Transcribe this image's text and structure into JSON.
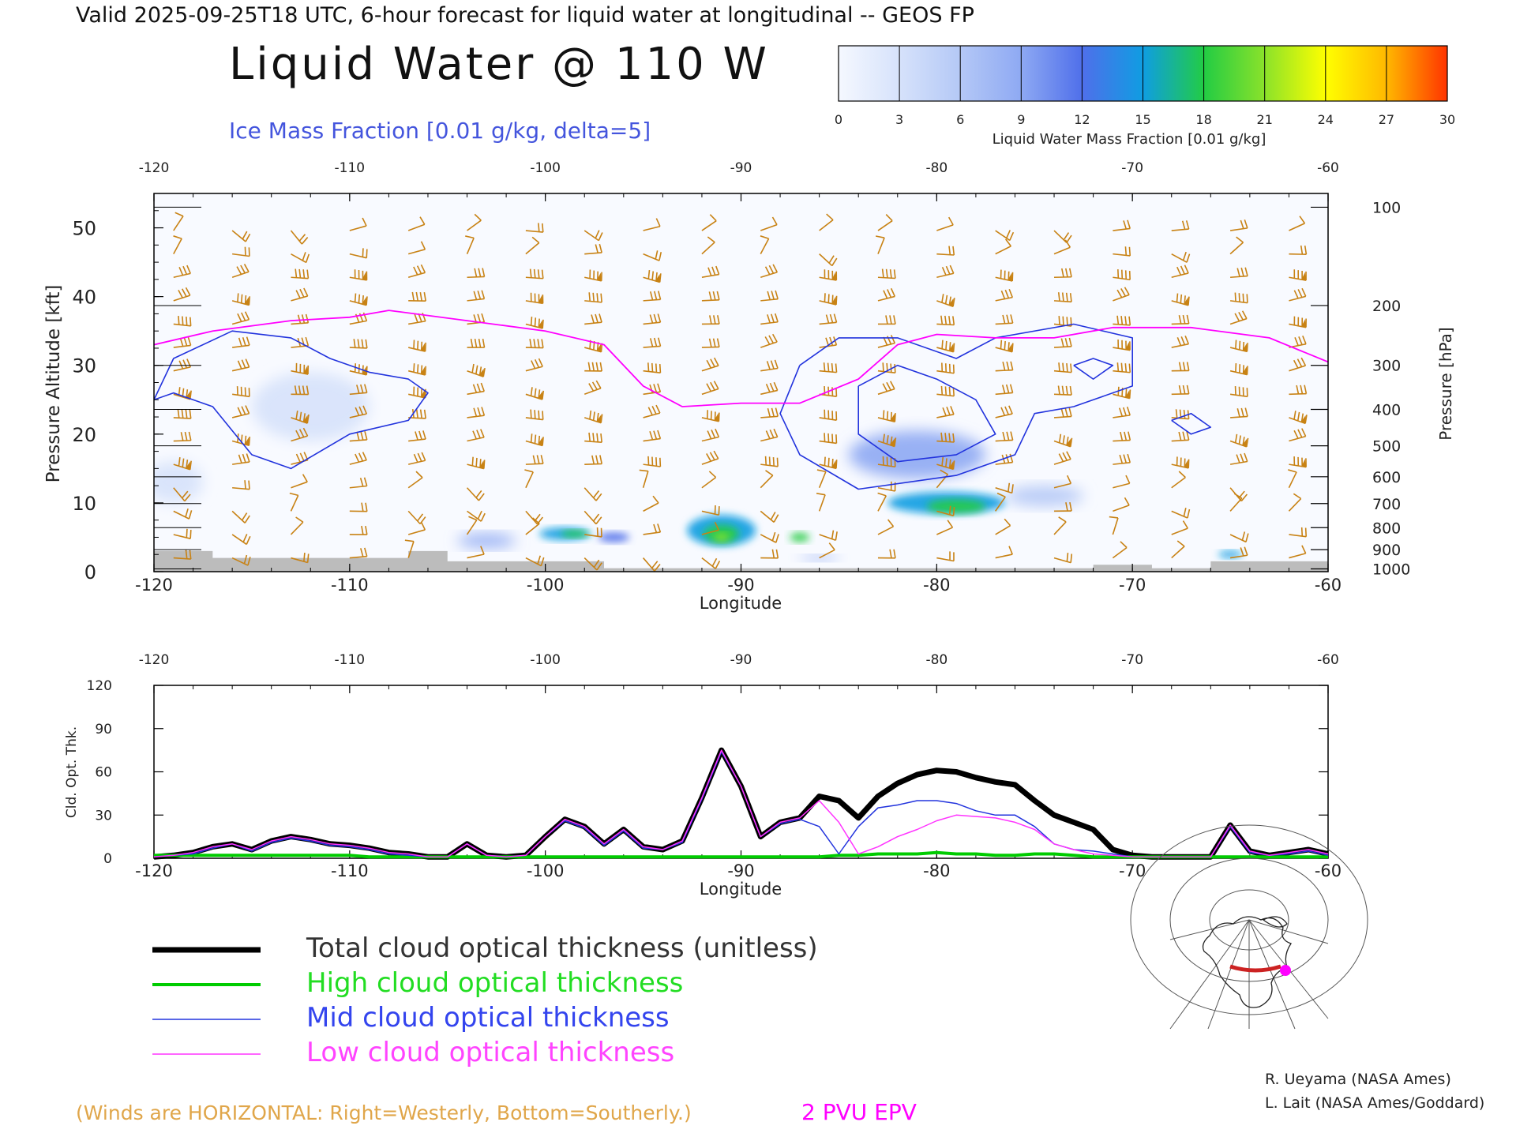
{
  "header": {
    "valid_line": "Valid 2025-09-25T18 UTC, 6-hour forecast for liquid water at longitudinal -- GEOS FP",
    "title": "Liquid Water @ 110 W",
    "contour_label": "Ice Mass Fraction [0.01 g/kg, delta=5]"
  },
  "colorbar": {
    "ticks": [
      "0",
      "3",
      "6",
      "9",
      "12",
      "15",
      "18",
      "21",
      "24",
      "27",
      "30"
    ],
    "label": "Liquid Water Mass Fraction [0.01 g/kg]",
    "colors": [
      "#f5f8ff",
      "#d6e2fb",
      "#b4c8f6",
      "#8ea9f3",
      "#4f6fea",
      "#0f9de2",
      "#22cc44",
      "#8be22a",
      "#ffff00",
      "#ffb800",
      "#ff3300"
    ]
  },
  "chart_data": [
    {
      "type": "heatmap",
      "name_hint": "cross-section",
      "xlabel": "Longitude",
      "ylabel": "Pressure Altitude [kft]",
      "ylabel_right": "Pressure [hPa]",
      "xlim": [
        -120,
        -60
      ],
      "ylim": [
        0,
        55
      ],
      "x_ticks": [
        "-120",
        "-110",
        "-100",
        "-90",
        "-80",
        "-70",
        "-60"
      ],
      "y_ticks": [
        "0",
        "10",
        "20",
        "30",
        "40",
        "50"
      ],
      "pressure_ticks": [
        "100",
        "200",
        "300",
        "400",
        "500",
        "600",
        "700",
        "800",
        "900",
        "1000"
      ],
      "pressure_ticks_kft": [
        53,
        38.7,
        30,
        23.6,
        18.3,
        13.8,
        9.9,
        6.4,
        3.2,
        0.4
      ],
      "wind_color": "#c88214",
      "pv_color": "#ff00ff",
      "ice_color": "#2233dd",
      "pv_line_2pvu": [
        [
          -120,
          33
        ],
        [
          -117,
          35
        ],
        [
          -113,
          36.5
        ],
        [
          -110,
          37
        ],
        [
          -108,
          38
        ],
        [
          -104,
          36.5
        ],
        [
          -100,
          35
        ],
        [
          -97,
          33
        ],
        [
          -95,
          27
        ],
        [
          -93,
          24
        ],
        [
          -90,
          24.5
        ],
        [
          -87,
          24.5
        ],
        [
          -84,
          28
        ],
        [
          -82,
          33
        ],
        [
          -80,
          34.5
        ],
        [
          -77,
          34
        ],
        [
          -74,
          34
        ],
        [
          -71,
          35.5
        ],
        [
          -67,
          35.5
        ],
        [
          -63,
          34
        ],
        [
          -60,
          30.5
        ]
      ],
      "ice_contours": [
        [
          [
            -120,
            25
          ],
          [
            -119,
            31
          ],
          [
            -116,
            35
          ],
          [
            -113,
            34
          ],
          [
            -111,
            31
          ],
          [
            -109,
            29
          ],
          [
            -107,
            28
          ],
          [
            -106,
            26
          ],
          [
            -107,
            22
          ],
          [
            -110,
            20
          ],
          [
            -113,
            15
          ],
          [
            -115,
            17
          ],
          [
            -117,
            24
          ],
          [
            -119,
            26
          ],
          [
            -120,
            25
          ]
        ],
        [
          [
            -87,
            30
          ],
          [
            -85,
            34
          ],
          [
            -82,
            34
          ],
          [
            -79,
            31
          ],
          [
            -77,
            34
          ],
          [
            -73,
            36
          ],
          [
            -70,
            34
          ],
          [
            -70,
            27
          ],
          [
            -73,
            24
          ],
          [
            -75,
            23
          ],
          [
            -76,
            17
          ],
          [
            -79,
            14
          ],
          [
            -84,
            12
          ],
          [
            -87,
            17
          ],
          [
            -88,
            23
          ],
          [
            -87,
            30
          ]
        ],
        [
          [
            -84,
            27
          ],
          [
            -82,
            30
          ],
          [
            -80,
            28
          ],
          [
            -78,
            25
          ],
          [
            -77,
            20
          ],
          [
            -79,
            17
          ],
          [
            -82,
            16
          ],
          [
            -84,
            20
          ],
          [
            -84,
            27
          ]
        ],
        [
          [
            -73,
            30
          ],
          [
            -72,
            31
          ],
          [
            -71,
            30
          ],
          [
            -72,
            28
          ],
          [
            -73,
            30
          ]
        ],
        [
          [
            -68,
            22
          ],
          [
            -67,
            23
          ],
          [
            -66,
            21
          ],
          [
            -67,
            20
          ],
          [
            -68,
            22
          ]
        ]
      ],
      "liquid_cells": [
        {
          "lon": -119,
          "kft": 13,
          "level": 1,
          "w": 3,
          "h": 6
        },
        {
          "lon": -112,
          "kft": 24,
          "level": 1,
          "w": 6,
          "h": 10
        },
        {
          "lon": -99,
          "kft": 5.5,
          "level": 5,
          "w": 2.6,
          "h": 1.8
        },
        {
          "lon": -98.5,
          "kft": 5.5,
          "level": 6,
          "w": 1.4,
          "h": 1.0
        },
        {
          "lon": -103,
          "kft": 4.5,
          "level": 3,
          "w": 3,
          "h": 2
        },
        {
          "lon": -96.5,
          "kft": 5,
          "level": 4,
          "w": 1.6,
          "h": 1.4
        },
        {
          "lon": -91,
          "kft": 6,
          "level": 5,
          "w": 3.5,
          "h": 4.5
        },
        {
          "lon": -91,
          "kft": 5.5,
          "level": 6,
          "w": 1.8,
          "h": 2.6
        },
        {
          "lon": -91,
          "kft": 5,
          "level": 7,
          "w": 0.8,
          "h": 1.2
        },
        {
          "lon": -87,
          "kft": 5,
          "level": 6,
          "w": 1.0,
          "h": 1.3
        },
        {
          "lon": -79.5,
          "kft": 10,
          "level": 5,
          "w": 6,
          "h": 3.2
        },
        {
          "lon": -79,
          "kft": 9.5,
          "level": 6,
          "w": 3,
          "h": 2
        },
        {
          "lon": -81,
          "kft": 17,
          "level": 3,
          "w": 7,
          "h": 7
        },
        {
          "lon": -74.5,
          "kft": 11,
          "level": 2,
          "w": 4,
          "h": 3
        },
        {
          "lon": -65,
          "kft": 2.5,
          "level": 5,
          "w": 1.2,
          "h": 1
        },
        {
          "lon": -86,
          "kft": 2,
          "level": 3,
          "w": 2,
          "h": 0.8
        }
      ],
      "terrain": [
        [
          -120,
          3
        ],
        [
          -117,
          3
        ],
        [
          -117,
          2
        ],
        [
          -107,
          2
        ],
        [
          -107,
          3
        ],
        [
          -105,
          3
        ],
        [
          -105,
          1.5
        ],
        [
          -97,
          1.5
        ],
        [
          -97,
          0.5
        ],
        [
          -72,
          0.5
        ],
        [
          -72,
          1
        ],
        [
          -69,
          1
        ],
        [
          -69,
          0.5
        ],
        [
          -66,
          0.5
        ],
        [
          -66,
          1.5
        ],
        [
          -60,
          1.5
        ]
      ]
    },
    {
      "type": "line",
      "name_hint": "optical-thickness",
      "xlabel": "Longitude",
      "ylabel": "Cld. Opt. Thk.",
      "xlim": [
        -120,
        -60
      ],
      "ylim": [
        0,
        120
      ],
      "x_ticks": [
        "-120",
        "-110",
        "-100",
        "-90",
        "-80",
        "-70",
        "-60"
      ],
      "y_ticks": [
        "0",
        "30",
        "60",
        "90",
        "120"
      ],
      "x": [
        -120,
        -119,
        -118,
        -117,
        -116,
        -115,
        -114,
        -113,
        -112,
        -111,
        -110,
        -109,
        -108,
        -107,
        -106,
        -105,
        -104,
        -103,
        -102,
        -101,
        -100,
        -99,
        -98,
        -97,
        -96,
        -95,
        -94,
        -93,
        -92,
        -91,
        -90,
        -89,
        -88,
        -87,
        -86,
        -85,
        -84,
        -83,
        -82,
        -81,
        -80,
        -79,
        -78,
        -77,
        -76,
        -75,
        -74,
        -73,
        -72,
        -71,
        -70,
        -69,
        -68,
        -67,
        -66,
        -65,
        -64,
        -63,
        -62,
        -61,
        -60
      ],
      "series": [
        {
          "name": "Total cloud optical thickness (unitless)",
          "color": "#000000",
          "width": 7,
          "values": [
            1,
            2,
            4,
            8,
            10,
            6,
            12,
            15,
            13,
            10,
            9,
            7,
            4,
            3,
            1,
            1,
            10,
            2,
            1,
            2,
            15,
            27,
            22,
            10,
            20,
            8,
            6,
            12,
            42,
            75,
            50,
            15,
            25,
            28,
            43,
            40,
            28,
            43,
            52,
            58,
            61,
            60,
            56,
            53,
            51,
            40,
            30,
            25,
            20,
            6,
            2,
            1,
            1,
            1,
            1,
            23,
            5,
            2,
            4,
            6,
            3
          ]
        },
        {
          "name": "High cloud optical thickness",
          "color": "#00cc00",
          "width": 4,
          "values": [
            2,
            2,
            2,
            2,
            2,
            2,
            2,
            2,
            2,
            2,
            2,
            1,
            1,
            1,
            1,
            1,
            1,
            1,
            1,
            1,
            1,
            1,
            1,
            1,
            1,
            1,
            1,
            1,
            1,
            1,
            1,
            1,
            1,
            1,
            1,
            2,
            2,
            3,
            3,
            3,
            4,
            3,
            3,
            2,
            2,
            3,
            3,
            2,
            1,
            1,
            1,
            1,
            1,
            1,
            1,
            1,
            1,
            1,
            1,
            1,
            1
          ]
        },
        {
          "name": "Mid cloud optical thickness",
          "color": "#2233dd",
          "width": 1.5,
          "values": [
            1,
            2,
            3,
            7,
            10,
            5,
            11,
            14,
            12,
            9,
            8,
            6,
            3,
            2,
            1,
            1,
            10,
            2,
            1,
            2,
            15,
            26,
            21,
            9,
            19,
            7,
            6,
            11,
            41,
            74,
            50,
            15,
            24,
            27,
            22,
            3,
            22,
            35,
            37,
            40,
            40,
            38,
            33,
            30,
            30,
            22,
            10,
            6,
            5,
            3,
            1,
            1,
            1,
            1,
            1,
            22,
            4,
            2,
            3,
            5,
            2
          ]
        },
        {
          "name": "Low cloud optical thickness",
          "color": "#ff33ff",
          "width": 1.5,
          "values": [
            1,
            2,
            4,
            8,
            10,
            6,
            12,
            15,
            13,
            10,
            9,
            7,
            4,
            3,
            1,
            1,
            10,
            2,
            1,
            2,
            15,
            27,
            22,
            10,
            20,
            8,
            6,
            12,
            42,
            75,
            50,
            15,
            25,
            28,
            40,
            25,
            3,
            8,
            15,
            20,
            26,
            30,
            29,
            28,
            25,
            20,
            10,
            6,
            3,
            2,
            1,
            1,
            1,
            1,
            1,
            23,
            5,
            2,
            4,
            6,
            3
          ]
        }
      ]
    }
  ],
  "legend": {
    "position": "bottom-left",
    "items": [
      {
        "label": "Total cloud optical thickness (unitless)",
        "color": "#000000",
        "text_color": "#333333"
      },
      {
        "label": "High cloud optical thickness",
        "color": "#00cc00",
        "text_color": "#22dd22"
      },
      {
        "label": "Mid cloud optical thickness",
        "color": "#2233dd",
        "text_color": "#3344ee"
      },
      {
        "label": "Low cloud optical thickness",
        "color": "#ff33ff",
        "text_color": "#ff44ff"
      }
    ]
  },
  "footer": {
    "winds_note": "(Winds are HORIZONTAL: Right=Westerly, Bottom=Southerly.)",
    "pv_label": "2 PVU EPV",
    "credit1": "R. Ueyama (NASA Ames)",
    "credit2": "L. Lait (NASA Ames/Goddard)"
  },
  "inset_map": {
    "route_color": "#cc2222",
    "marker_color": "#ff00ff"
  }
}
